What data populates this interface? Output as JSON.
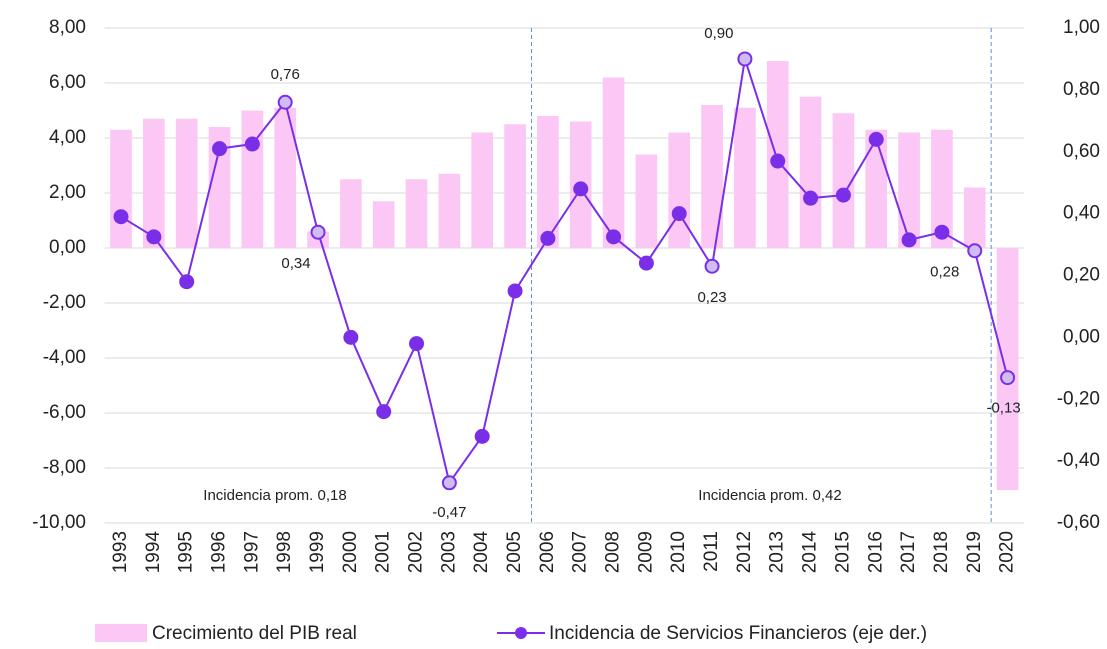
{
  "chart_data": {
    "type": "bar-line",
    "categories": [
      "1993",
      "1994",
      "1995",
      "1996",
      "1997",
      "1998",
      "1999",
      "2000",
      "2001",
      "2002",
      "2003",
      "2004",
      "2005",
      "2006",
      "2007",
      "2008",
      "2009",
      "2010",
      "2011",
      "2012",
      "2013",
      "2014",
      "2015",
      "2016",
      "2017",
      "2018",
      "2019",
      "2020"
    ],
    "series": [
      {
        "name": "Crecimiento del PIB real",
        "type": "bar",
        "color": "#fbc8f6",
        "axis": "y",
        "values": [
          4.3,
          4.7,
          4.7,
          4.4,
          5.0,
          5.1,
          0.6,
          2.5,
          1.7,
          2.5,
          2.7,
          4.2,
          4.5,
          4.8,
          4.6,
          6.2,
          3.4,
          4.2,
          5.2,
          5.1,
          6.8,
          5.5,
          4.9,
          4.3,
          4.2,
          4.3,
          2.2,
          -8.8
        ]
      },
      {
        "name": "Incidencia de Servicios Financieros (eje der.)",
        "type": "line",
        "color": "#7a2ee8",
        "axis": "y2",
        "values": [
          0.39,
          0.325,
          0.18,
          0.61,
          0.625,
          0.76,
          0.34,
          0.0,
          -0.24,
          -0.02,
          -0.47,
          -0.32,
          0.15,
          0.32,
          0.48,
          0.325,
          0.24,
          0.4,
          0.23,
          0.9,
          0.57,
          0.45,
          0.46,
          0.64,
          0.315,
          0.34,
          0.28,
          -0.13
        ],
        "value_labels": [
          null,
          null,
          null,
          null,
          null,
          "0,76",
          "0,34",
          null,
          null,
          null,
          "-0,47",
          null,
          null,
          null,
          null,
          null,
          null,
          null,
          "0,23",
          "0,90",
          null,
          null,
          null,
          null,
          null,
          null,
          "0,28",
          "-0,13"
        ]
      }
    ],
    "ylim": [
      -10,
      8
    ],
    "yticks": [
      {
        "value": -10,
        "label": "-10,00"
      },
      {
        "value": -8,
        "label": "-8,00"
      },
      {
        "value": -6,
        "label": "-6,00"
      },
      {
        "value": -4,
        "label": "-4,00"
      },
      {
        "value": -2,
        "label": "-2,00"
      },
      {
        "value": 0,
        "label": "0,00"
      },
      {
        "value": 2,
        "label": "2,00"
      },
      {
        "value": 4,
        "label": "4,00"
      },
      {
        "value": 6,
        "label": "6,00"
      },
      {
        "value": 8,
        "label": "8,00"
      }
    ],
    "y2lim": [
      -0.6,
      1.0
    ],
    "y2ticks": [
      {
        "value": -0.6,
        "label": "-0,60"
      },
      {
        "value": -0.4,
        "label": "-0,40"
      },
      {
        "value": -0.2,
        "label": "-0,20"
      },
      {
        "value": 0,
        "label": "0,00"
      },
      {
        "value": 0.2,
        "label": "0,20"
      },
      {
        "value": 0.4,
        "label": "0,40"
      },
      {
        "value": 0.6,
        "label": "0,60"
      },
      {
        "value": 0.8,
        "label": "0,80"
      },
      {
        "value": 1.0,
        "label": "1,00"
      }
    ],
    "grid": true,
    "annotations": [
      "Incidencia prom. 0,18",
      "Incidencia prom. 0,42"
    ]
  }
}
